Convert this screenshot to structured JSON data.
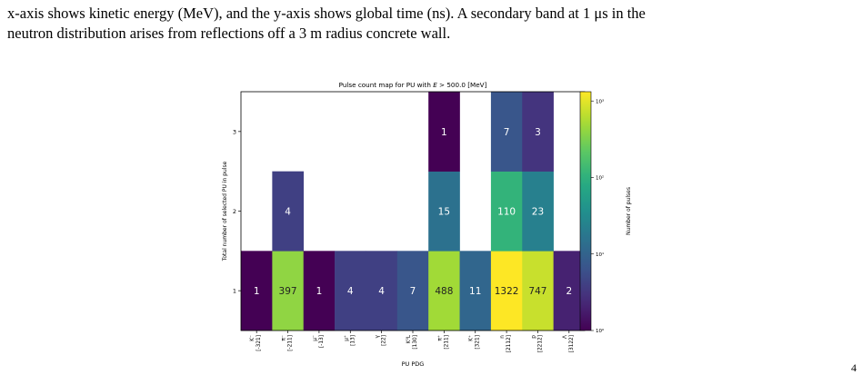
{
  "caption": {
    "line1": "x-axis shows kinetic energy (MeV), and the y-axis shows global time (ns). A secondary band at 1 μs in the",
    "line2": "neutron distribution arises from reflections off a 3 m radius concrete wall."
  },
  "corner_mark": "4",
  "chart_data": {
    "type": "heatmap",
    "title_prefix": "Pulse count map for PU with ",
    "title_math": "E",
    "title_suffix": " > 500.0 [MeV]",
    "xlabel": "PU PDG",
    "ylabel": "Total number of selected PU in pulse",
    "colorbar_label": "Number of pulses",
    "colormap": "viridis",
    "color_scale": "log",
    "colorbar_range": [
      1,
      1322
    ],
    "colorbar_ticks": [
      {
        "value": 1,
        "label": "10⁰"
      },
      {
        "value": 10,
        "label": "10¹"
      },
      {
        "value": 100,
        "label": "10²"
      },
      {
        "value": 1000,
        "label": "10³"
      }
    ],
    "y_ticks": [
      "1",
      "2",
      "3"
    ],
    "x_categories": [
      {
        "symbol": "K⁻",
        "code": "[-321]"
      },
      {
        "symbol": "π⁻",
        "code": "[-211]"
      },
      {
        "symbol": "μ⁻",
        "code": "[-13]"
      },
      {
        "symbol": "μ⁺",
        "code": "[13]"
      },
      {
        "symbol": "γ",
        "code": "[22]"
      },
      {
        "symbol": "K⁰L",
        "code": "[130]"
      },
      {
        "symbol": "π⁺",
        "code": "[211]"
      },
      {
        "symbol": "K⁺",
        "code": "[321]"
      },
      {
        "symbol": "n",
        "code": "[2112]"
      },
      {
        "symbol": "p",
        "code": "[2212]"
      },
      {
        "symbol": "Λ",
        "code": "[3122]"
      }
    ],
    "cells": [
      {
        "x": 0,
        "y": 1,
        "value": 1
      },
      {
        "x": 1,
        "y": 1,
        "value": 397
      },
      {
        "x": 2,
        "y": 1,
        "value": 1
      },
      {
        "x": 3,
        "y": 1,
        "value": 4
      },
      {
        "x": 4,
        "y": 1,
        "value": 4
      },
      {
        "x": 5,
        "y": 1,
        "value": 7
      },
      {
        "x": 6,
        "y": 1,
        "value": 488
      },
      {
        "x": 7,
        "y": 1,
        "value": 11
      },
      {
        "x": 8,
        "y": 1,
        "value": 1322
      },
      {
        "x": 9,
        "y": 1,
        "value": 747
      },
      {
        "x": 10,
        "y": 1,
        "value": 2
      },
      {
        "x": 1,
        "y": 2,
        "value": 4
      },
      {
        "x": 6,
        "y": 2,
        "value": 15
      },
      {
        "x": 8,
        "y": 2,
        "value": 110
      },
      {
        "x": 9,
        "y": 2,
        "value": 23
      },
      {
        "x": 6,
        "y": 3,
        "value": 1
      },
      {
        "x": 8,
        "y": 3,
        "value": 7
      },
      {
        "x": 9,
        "y": 3,
        "value": 3
      }
    ]
  }
}
